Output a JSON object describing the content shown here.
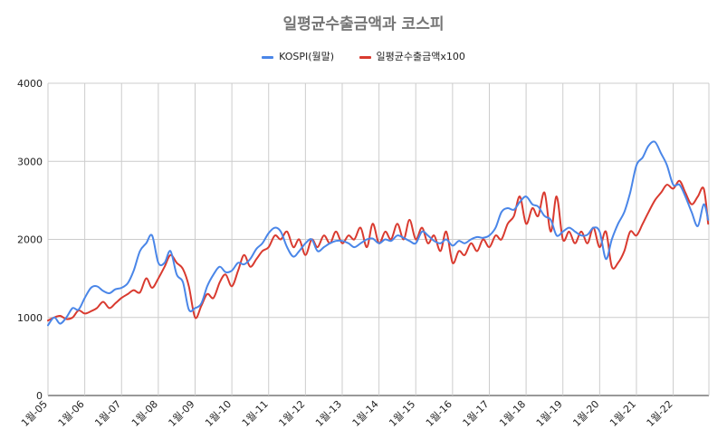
{
  "colors": {
    "kospi": "#4a86e8",
    "spending": "#d93a2f",
    "grid": "#cccccc",
    "title": "#757575",
    "text": "#222222"
  },
  "chart_data": {
    "type": "line",
    "title": "일평균수출금액과 코스피",
    "xlabel": "",
    "ylabel": "",
    "ylim": [
      0,
      4000
    ],
    "yticks": [
      "0",
      "1000",
      "2000",
      "3000",
      "4000"
    ],
    "x_start": "2005-01",
    "x_end": "2022-12",
    "categories": [
      "1월-05",
      "1월-06",
      "1월-07",
      "1월-08",
      "1월-09",
      "1월-10",
      "1월-11",
      "1월-12",
      "1월-13",
      "1월-14",
      "1월-15",
      "1월-16",
      "1월-17",
      "1월-18",
      "1월-19",
      "1월-20",
      "1월-21",
      "1월-22"
    ],
    "grid": true,
    "legend_position": "top",
    "series": [
      {
        "name": "KOSPI(월말)",
        "color": "#4a86e8",
        "values": [
          [
            2005.0,
            900
          ],
          [
            2005.17,
            1000
          ],
          [
            2005.33,
            920
          ],
          [
            2005.5,
            1000
          ],
          [
            2005.67,
            1120
          ],
          [
            2005.83,
            1100
          ],
          [
            2006.0,
            1250
          ],
          [
            2006.17,
            1380
          ],
          [
            2006.33,
            1400
          ],
          [
            2006.5,
            1340
          ],
          [
            2006.67,
            1310
          ],
          [
            2006.83,
            1360
          ],
          [
            2007.0,
            1380
          ],
          [
            2007.17,
            1440
          ],
          [
            2007.33,
            1600
          ],
          [
            2007.5,
            1850
          ],
          [
            2007.67,
            1950
          ],
          [
            2007.83,
            2050
          ],
          [
            2008.0,
            1700
          ],
          [
            2008.17,
            1700
          ],
          [
            2008.33,
            1850
          ],
          [
            2008.5,
            1550
          ],
          [
            2008.67,
            1450
          ],
          [
            2008.83,
            1100
          ],
          [
            2009.0,
            1120
          ],
          [
            2009.17,
            1180
          ],
          [
            2009.33,
            1400
          ],
          [
            2009.5,
            1550
          ],
          [
            2009.67,
            1650
          ],
          [
            2009.83,
            1580
          ],
          [
            2010.0,
            1600
          ],
          [
            2010.17,
            1700
          ],
          [
            2010.33,
            1680
          ],
          [
            2010.5,
            1750
          ],
          [
            2010.67,
            1880
          ],
          [
            2010.83,
            1950
          ],
          [
            2011.0,
            2080
          ],
          [
            2011.17,
            2150
          ],
          [
            2011.33,
            2100
          ],
          [
            2011.5,
            1900
          ],
          [
            2011.67,
            1780
          ],
          [
            2011.83,
            1850
          ],
          [
            2012.0,
            1950
          ],
          [
            2012.17,
            2000
          ],
          [
            2012.33,
            1850
          ],
          [
            2012.5,
            1900
          ],
          [
            2012.67,
            1950
          ],
          [
            2012.83,
            1980
          ],
          [
            2013.0,
            1980
          ],
          [
            2013.17,
            1950
          ],
          [
            2013.33,
            1900
          ],
          [
            2013.5,
            1950
          ],
          [
            2013.67,
            2000
          ],
          [
            2013.83,
            2010
          ],
          [
            2014.0,
            1950
          ],
          [
            2014.17,
            2000
          ],
          [
            2014.33,
            1980
          ],
          [
            2014.5,
            2050
          ],
          [
            2014.67,
            2020
          ],
          [
            2014.83,
            1980
          ],
          [
            2015.0,
            1950
          ],
          [
            2015.17,
            2100
          ],
          [
            2015.33,
            2050
          ],
          [
            2015.5,
            1980
          ],
          [
            2015.67,
            1950
          ],
          [
            2015.83,
            2000
          ],
          [
            2016.0,
            1920
          ],
          [
            2016.17,
            1980
          ],
          [
            2016.33,
            1950
          ],
          [
            2016.5,
            2000
          ],
          [
            2016.67,
            2030
          ],
          [
            2016.83,
            2020
          ],
          [
            2017.0,
            2050
          ],
          [
            2017.17,
            2150
          ],
          [
            2017.33,
            2350
          ],
          [
            2017.5,
            2400
          ],
          [
            2017.67,
            2380
          ],
          [
            2017.83,
            2480
          ],
          [
            2018.0,
            2550
          ],
          [
            2018.17,
            2450
          ],
          [
            2018.33,
            2420
          ],
          [
            2018.5,
            2300
          ],
          [
            2018.67,
            2250
          ],
          [
            2018.83,
            2050
          ],
          [
            2019.0,
            2100
          ],
          [
            2019.17,
            2150
          ],
          [
            2019.33,
            2100
          ],
          [
            2019.5,
            2050
          ],
          [
            2019.67,
            2060
          ],
          [
            2019.83,
            2150
          ],
          [
            2020.0,
            2100
          ],
          [
            2020.17,
            1750
          ],
          [
            2020.33,
            2000
          ],
          [
            2020.5,
            2200
          ],
          [
            2020.67,
            2350
          ],
          [
            2020.83,
            2600
          ],
          [
            2021.0,
            2950
          ],
          [
            2021.17,
            3050
          ],
          [
            2021.33,
            3200
          ],
          [
            2021.5,
            3250
          ],
          [
            2021.67,
            3100
          ],
          [
            2021.83,
            2950
          ],
          [
            2022.0,
            2700
          ],
          [
            2022.17,
            2700
          ],
          [
            2022.33,
            2550
          ],
          [
            2022.5,
            2350
          ],
          [
            2022.67,
            2170
          ],
          [
            2022.83,
            2450
          ],
          [
            2022.95,
            2250
          ]
        ]
      },
      {
        "name": "일평균수출금액x100",
        "color": "#d93a2f",
        "values": [
          [
            2005.0,
            960
          ],
          [
            2005.17,
            1000
          ],
          [
            2005.33,
            1020
          ],
          [
            2005.5,
            980
          ],
          [
            2005.67,
            1000
          ],
          [
            2005.83,
            1090
          ],
          [
            2006.0,
            1050
          ],
          [
            2006.17,
            1080
          ],
          [
            2006.33,
            1120
          ],
          [
            2006.5,
            1200
          ],
          [
            2006.67,
            1120
          ],
          [
            2006.83,
            1180
          ],
          [
            2007.0,
            1250
          ],
          [
            2007.17,
            1300
          ],
          [
            2007.33,
            1350
          ],
          [
            2007.5,
            1320
          ],
          [
            2007.67,
            1500
          ],
          [
            2007.83,
            1380
          ],
          [
            2008.0,
            1500
          ],
          [
            2008.17,
            1650
          ],
          [
            2008.33,
            1800
          ],
          [
            2008.5,
            1700
          ],
          [
            2008.67,
            1620
          ],
          [
            2008.83,
            1400
          ],
          [
            2009.0,
            1000
          ],
          [
            2009.17,
            1150
          ],
          [
            2009.33,
            1300
          ],
          [
            2009.5,
            1250
          ],
          [
            2009.67,
            1450
          ],
          [
            2009.83,
            1550
          ],
          [
            2010.0,
            1400
          ],
          [
            2010.17,
            1600
          ],
          [
            2010.33,
            1800
          ],
          [
            2010.5,
            1650
          ],
          [
            2010.67,
            1750
          ],
          [
            2010.83,
            1850
          ],
          [
            2011.0,
            1900
          ],
          [
            2011.17,
            2050
          ],
          [
            2011.33,
            2000
          ],
          [
            2011.5,
            2100
          ],
          [
            2011.67,
            1900
          ],
          [
            2011.83,
            2000
          ],
          [
            2012.0,
            1800
          ],
          [
            2012.17,
            2000
          ],
          [
            2012.33,
            1900
          ],
          [
            2012.5,
            2050
          ],
          [
            2012.67,
            1950
          ],
          [
            2012.83,
            2100
          ],
          [
            2013.0,
            1950
          ],
          [
            2013.17,
            2050
          ],
          [
            2013.33,
            2000
          ],
          [
            2013.5,
            2150
          ],
          [
            2013.67,
            1900
          ],
          [
            2013.83,
            2200
          ],
          [
            2014.0,
            1950
          ],
          [
            2014.17,
            2100
          ],
          [
            2014.33,
            2000
          ],
          [
            2014.5,
            2200
          ],
          [
            2014.67,
            2000
          ],
          [
            2014.83,
            2250
          ],
          [
            2015.0,
            2000
          ],
          [
            2015.17,
            2150
          ],
          [
            2015.33,
            1950
          ],
          [
            2015.5,
            2050
          ],
          [
            2015.67,
            1850
          ],
          [
            2015.83,
            2100
          ],
          [
            2016.0,
            1700
          ],
          [
            2016.17,
            1850
          ],
          [
            2016.33,
            1800
          ],
          [
            2016.5,
            1950
          ],
          [
            2016.67,
            1850
          ],
          [
            2016.83,
            2000
          ],
          [
            2017.0,
            1900
          ],
          [
            2017.17,
            2050
          ],
          [
            2017.33,
            2000
          ],
          [
            2017.5,
            2200
          ],
          [
            2017.67,
            2300
          ],
          [
            2017.83,
            2550
          ],
          [
            2018.0,
            2200
          ],
          [
            2018.17,
            2400
          ],
          [
            2018.33,
            2300
          ],
          [
            2018.5,
            2600
          ],
          [
            2018.67,
            2100
          ],
          [
            2018.83,
            2550
          ],
          [
            2019.0,
            2000
          ],
          [
            2019.17,
            2100
          ],
          [
            2019.33,
            1950
          ],
          [
            2019.5,
            2100
          ],
          [
            2019.67,
            1950
          ],
          [
            2019.83,
            2150
          ],
          [
            2020.0,
            1900
          ],
          [
            2020.17,
            2100
          ],
          [
            2020.33,
            1650
          ],
          [
            2020.5,
            1700
          ],
          [
            2020.67,
            1850
          ],
          [
            2020.83,
            2100
          ],
          [
            2021.0,
            2050
          ],
          [
            2021.17,
            2200
          ],
          [
            2021.33,
            2350
          ],
          [
            2021.5,
            2500
          ],
          [
            2021.67,
            2600
          ],
          [
            2021.83,
            2700
          ],
          [
            2022.0,
            2650
          ],
          [
            2022.17,
            2750
          ],
          [
            2022.33,
            2600
          ],
          [
            2022.5,
            2450
          ],
          [
            2022.67,
            2550
          ],
          [
            2022.83,
            2650
          ],
          [
            2022.95,
            2200
          ]
        ]
      }
    ]
  }
}
